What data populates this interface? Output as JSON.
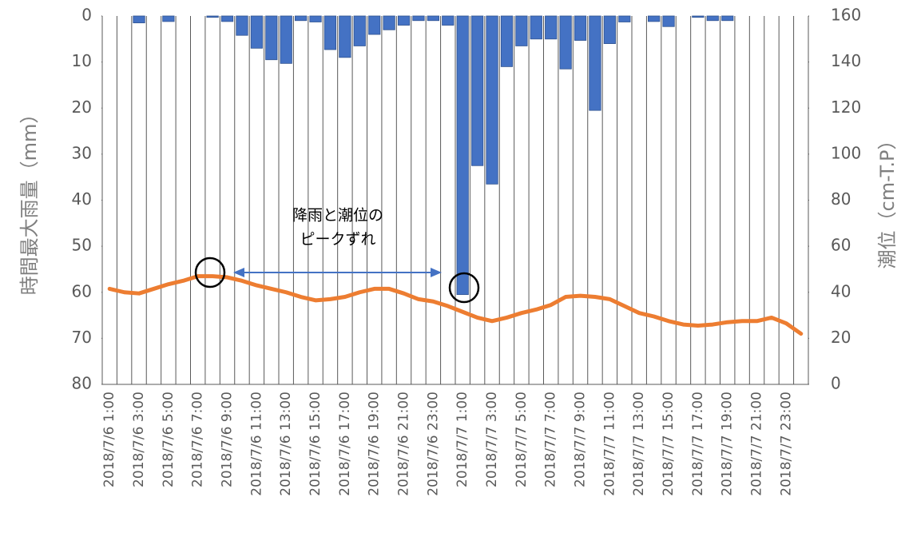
{
  "chart_data": {
    "type": "bar",
    "categories": [
      "2018/7/6 1:00",
      null,
      "2018/7/6 3:00",
      null,
      "2018/7/6 5:00",
      null,
      "2018/7/6 7:00",
      null,
      "2018/7/6 9:00",
      null,
      "2018/7/6 11:00",
      null,
      "2018/7/6 13:00",
      null,
      "2018/7/6 15:00",
      null,
      "2018/7/6 17:00",
      null,
      "2018/7/6 19:00",
      null,
      "2018/7/6 21:00",
      null,
      "2018/7/6 23:00",
      null,
      "2018/7/7 1:00",
      null,
      "2018/7/7 3:00",
      null,
      "2018/7/7 5:00",
      null,
      "2018/7/7 7:00",
      null,
      "2018/7/7 9:00",
      null,
      "2018/7/7 11:00",
      null,
      "2018/7/7 13:00",
      null,
      "2018/7/7 15:00",
      null,
      "2018/7/7 17:00",
      null,
      "2018/7/7 19:00",
      null,
      "2018/7/7 21:00",
      null,
      "2018/7/7 23:00",
      null
    ],
    "series": [
      {
        "type": "bar",
        "color": "#4472c4",
        "values": [
          0,
          0,
          1.5,
          0,
          1.2,
          0,
          0,
          0.3,
          1.2,
          4.2,
          7,
          9.5,
          10.3,
          1,
          1.3,
          7.3,
          9,
          6.5,
          4,
          3,
          2,
          1,
          1,
          2,
          60.5,
          32.5,
          36.5,
          11,
          6.5,
          5,
          5,
          11.5,
          5.3,
          20.5,
          6,
          1.3,
          0,
          1.2,
          2.3,
          0,
          0.3,
          1,
          1,
          0,
          0,
          0,
          0,
          0
        ]
      },
      {
        "type": "line",
        "axis": "y2",
        "color": "#ed7d31",
        "values": [
          41.5,
          40,
          39.5,
          41.5,
          43.5,
          45,
          47,
          47,
          46.5,
          45,
          43,
          41.5,
          40,
          38,
          36.5,
          37,
          38,
          40,
          41.5,
          41.5,
          39.5,
          37,
          36,
          34,
          31.5,
          29,
          27.5,
          29,
          31,
          32.5,
          34.5,
          38,
          38.5,
          38,
          37,
          34,
          31,
          29.5,
          27.5,
          26,
          25.5,
          26,
          27,
          27.5,
          27.5,
          29,
          26.5,
          22
        ]
      }
    ],
    "y_label": "時間最大雨量（mm）",
    "y2_label": "潮位（cm-T.P）",
    "ylim": [
      0,
      80
    ],
    "yticks": [
      0,
      10,
      20,
      30,
      40,
      50,
      60,
      70,
      80
    ],
    "y_inverted": true,
    "y2lim": [
      0,
      160
    ],
    "y2ticks": [
      0,
      20,
      40,
      60,
      80,
      100,
      120,
      140,
      160
    ],
    "annotations": [
      "降雨と潮位の",
      "ピークずれ"
    ]
  }
}
